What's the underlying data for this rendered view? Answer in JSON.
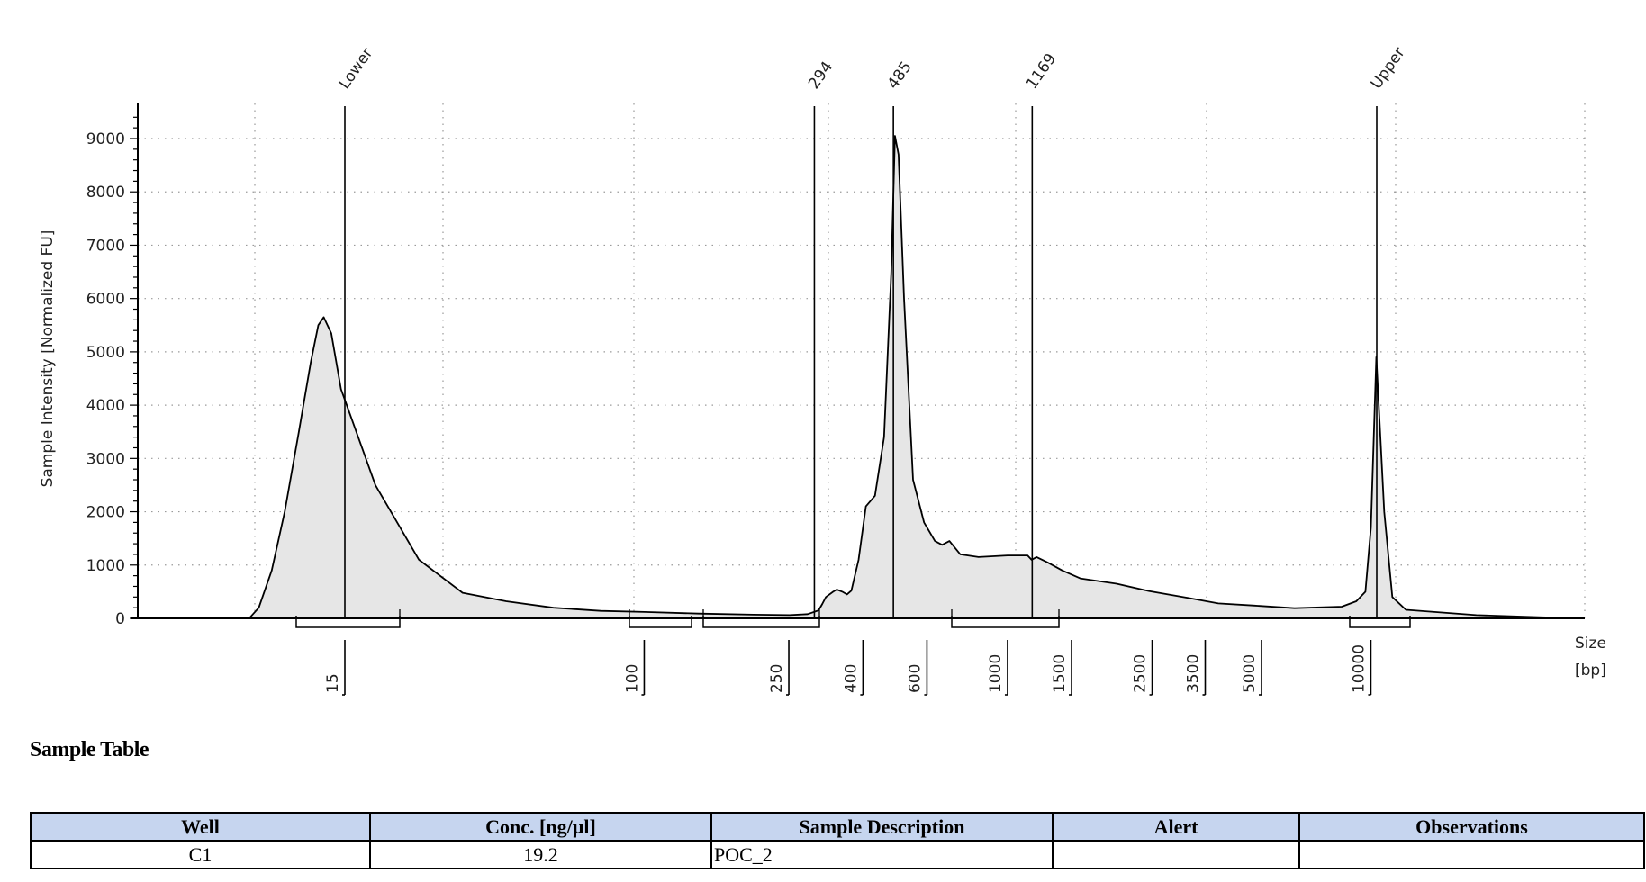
{
  "chart_data": {
    "type": "area",
    "title": "",
    "ylabel": "Sample Intensity [Normalized FU]",
    "xlabel_line1": "Size",
    "xlabel_line2": "[bp]",
    "ylim": [
      0,
      9500
    ],
    "yticks": [
      0,
      1000,
      2000,
      3000,
      4000,
      5000,
      6000,
      7000,
      8000,
      9000
    ],
    "xtick_labels": [
      {
        "label": "15",
        "bp": 15
      },
      {
        "label": "100",
        "bp": 100
      },
      {
        "label": "250",
        "bp": 250
      },
      {
        "label": "400",
        "bp": 400
      },
      {
        "label": "600",
        "bp": 600
      },
      {
        "label": "1000",
        "bp": 1000
      },
      {
        "label": "1500",
        "bp": 1500
      },
      {
        "label": "2500",
        "bp": 2500
      },
      {
        "label": "3500",
        "bp": 3500
      },
      {
        "label": "5000",
        "bp": 5000
      },
      {
        "label": "10000",
        "bp": 10000
      }
    ],
    "peaks": [
      {
        "label": "Lower",
        "bp": 15
      },
      {
        "label": "294",
        "bp": 294
      },
      {
        "label": "485",
        "bp": 485
      },
      {
        "label": "1169",
        "bp": 1169
      },
      {
        "label": "Upper",
        "bp": 10380
      }
    ],
    "grid": true,
    "fill_color": "#e6e6e6",
    "line_color": "#000000",
    "trace": [
      [
        -0.74,
        0
      ],
      [
        0.14,
        0
      ],
      [
        0.3,
        20
      ],
      [
        0.38,
        200
      ],
      [
        0.5,
        900
      ],
      [
        0.62,
        2000
      ],
      [
        0.75,
        3500
      ],
      [
        0.86,
        4800
      ],
      [
        0.93,
        5500
      ],
      [
        0.98,
        5650
      ],
      [
        1.05,
        5350
      ],
      [
        1.14,
        4300
      ],
      [
        1.26,
        2500
      ],
      [
        1.38,
        1100
      ],
      [
        1.5,
        480
      ],
      [
        1.62,
        320
      ],
      [
        1.75,
        200
      ],
      [
        1.88,
        140
      ],
      [
        2.0,
        120
      ],
      [
        2.15,
        90
      ],
      [
        2.3,
        70
      ],
      [
        2.4,
        60
      ],
      [
        2.45,
        80
      ],
      [
        2.48,
        150
      ],
      [
        2.49,
        270
      ],
      [
        2.5,
        400
      ],
      [
        2.52,
        500
      ],
      [
        2.53,
        540
      ],
      [
        2.545,
        500
      ],
      [
        2.558,
        450
      ],
      [
        2.57,
        520
      ],
      [
        2.59,
        1100
      ],
      [
        2.61,
        2100
      ],
      [
        2.635,
        2300
      ],
      [
        2.66,
        3400
      ],
      [
        2.68,
        6500
      ],
      [
        2.69,
        9050
      ],
      [
        2.7,
        8700
      ],
      [
        2.715,
        6000
      ],
      [
        2.74,
        2600
      ],
      [
        2.77,
        1800
      ],
      [
        2.8,
        1450
      ],
      [
        2.82,
        1380
      ],
      [
        2.84,
        1450
      ],
      [
        2.87,
        1200
      ],
      [
        2.92,
        1150
      ],
      [
        3.0,
        1180
      ],
      [
        3.055,
        1180
      ],
      [
        3.066,
        1100
      ],
      [
        3.08,
        1150
      ],
      [
        3.11,
        1050
      ],
      [
        3.15,
        900
      ],
      [
        3.2,
        750
      ],
      [
        3.3,
        650
      ],
      [
        3.39,
        510
      ],
      [
        3.5,
        380
      ],
      [
        3.58,
        280
      ],
      [
        3.68,
        240
      ],
      [
        3.79,
        190
      ],
      [
        3.92,
        220
      ],
      [
        3.96,
        320
      ],
      [
        3.985,
        500
      ],
      [
        4.0,
        1700
      ],
      [
        4.015,
        4900
      ],
      [
        4.03,
        2000
      ],
      [
        4.045,
        400
      ],
      [
        4.07,
        160
      ],
      [
        4.2,
        60
      ],
      [
        4.32,
        20
      ],
      [
        4.4,
        0
      ]
    ],
    "trace_note": "x values are log10(bp) as implied by the log-spaced size axis"
  },
  "sample_table": {
    "title": "Sample Table",
    "headers": [
      "Well",
      "Conc. [ng/µl]",
      "Sample Description",
      "Alert",
      "Observations"
    ],
    "rows": [
      [
        "C1",
        "19.2",
        "POC_2",
        "",
        ""
      ]
    ]
  }
}
